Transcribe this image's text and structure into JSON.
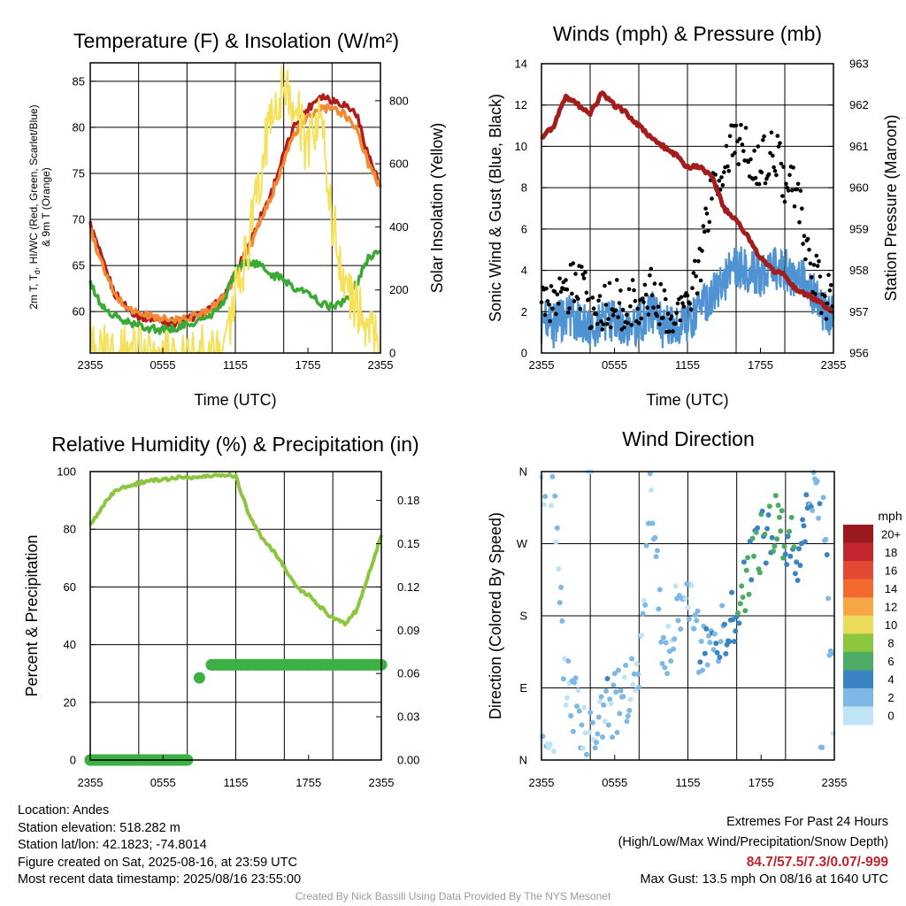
{
  "colors": {
    "red": "#b31b1b",
    "scarlet": "#e34a33",
    "orange": "#f08a33",
    "green": "#3aaa35",
    "yellow": "#f5e15a",
    "blue": "#4f93d2",
    "black": "#000000",
    "maroon": "#a31d1d",
    "rh_green": "#8cc63f",
    "precip_green": "#3cb043"
  },
  "chart_data": [
    {
      "type": "line",
      "title": "Temperature (F) & Insolation (W/m²)",
      "xlabel": "Time (UTC)",
      "ylabel": "2m T, T_d, HI/WC (Red, Green, Scarlet/Blue) & 9m T (Orange)",
      "ylabel_line1": "2m T, T",
      "ylabel_sub": "d",
      "ylabel_line1b": ", HI/WC (Red, Green, Scarlet/Blue)",
      "ylabel_line2": "& 9m T (Orange)",
      "y2label": "Solar Insolation (Yellow)",
      "xticks": [
        "2355",
        "0555",
        "1155",
        "1755",
        "2355"
      ],
      "yticks": [
        "60",
        "65",
        "70",
        "75",
        "80",
        "85"
      ],
      "y2ticks": [
        "0",
        "200",
        "400",
        "600",
        "800"
      ],
      "ylim": [
        55.5,
        87
      ],
      "y2lim": [
        0,
        920
      ],
      "grid": true,
      "x_hours_since_2355": [
        0,
        1,
        2,
        3,
        4,
        5,
        6,
        7,
        8,
        9,
        10,
        11,
        12,
        13,
        14,
        15,
        16,
        17,
        18,
        19,
        20,
        21,
        22,
        23,
        24
      ],
      "series": [
        {
          "name": "2m T",
          "color": "red",
          "values": [
            69.5,
            65.5,
            62,
            60.5,
            59.5,
            59.3,
            59,
            58.8,
            59.2,
            59.5,
            60.3,
            61.5,
            64,
            67,
            70,
            73,
            77,
            80.5,
            82,
            83.5,
            83,
            82.5,
            81.5,
            77,
            73.5
          ]
        },
        {
          "name": "9m T",
          "color": "orange",
          "values": [
            69,
            65,
            61.8,
            60.5,
            59.8,
            59.5,
            59.2,
            59,
            59.3,
            59.7,
            60.5,
            61.5,
            63.8,
            66.5,
            69.5,
            72.5,
            76.5,
            79.5,
            81,
            82,
            82,
            81.5,
            80,
            76,
            73.5
          ]
        },
        {
          "name": "T_d",
          "color": "green",
          "values": [
            63,
            60.5,
            59.5,
            58.8,
            58.5,
            58.2,
            58,
            58.2,
            58.5,
            59,
            59.5,
            61,
            64.5,
            65.5,
            65,
            64,
            63.5,
            62.5,
            62,
            61,
            60.5,
            61,
            63,
            66,
            66.5
          ]
        },
        {
          "name": "Solar Insolation",
          "color": "yellow",
          "axis": "right",
          "values": [
            0,
            0,
            0,
            0,
            0,
            0,
            0,
            0,
            0,
            0,
            0,
            20,
            180,
            320,
            560,
            750,
            860,
            780,
            620,
            780,
            430,
            220,
            150,
            80,
            0
          ]
        }
      ]
    },
    {
      "type": "line",
      "title": "Winds (mph) & Pressure (mb)",
      "xlabel": "Time (UTC)",
      "ylabel": "Sonic Wind & Gust (Blue, Black)",
      "y2label": "Station Pressure (Maroon)",
      "xticks": [
        "2355",
        "0555",
        "1155",
        "1755",
        "2355"
      ],
      "yticks": [
        "0",
        "2",
        "4",
        "6",
        "8",
        "10",
        "12",
        "14"
      ],
      "y2ticks": [
        "956",
        "957",
        "958",
        "959",
        "960",
        "961",
        "962",
        "963"
      ],
      "ylim": [
        0,
        14
      ],
      "y2lim": [
        956,
        963
      ],
      "grid": true,
      "x_hours_since_2355": [
        0,
        1,
        2,
        3,
        4,
        5,
        6,
        7,
        8,
        9,
        10,
        11,
        12,
        13,
        14,
        15,
        16,
        17,
        18,
        19,
        20,
        21,
        22,
        23,
        24
      ],
      "series": [
        {
          "name": "Sonic Wind",
          "color": "blue",
          "values": [
            1.5,
            1.3,
            1.8,
            1.5,
            1.2,
            1.4,
            1.6,
            1.3,
            1.5,
            2.0,
            1.3,
            1.5,
            1.5,
            2.3,
            2.8,
            3.5,
            4.2,
            4.0,
            3.8,
            4.2,
            4.0,
            3.7,
            3.2,
            2.2,
            1.6
          ]
        },
        {
          "name": "Gust",
          "color": "black",
          "values": [
            2.2,
            2.5,
            3.0,
            3.5,
            2.3,
            2.0,
            2.4,
            2.3,
            2.5,
            3.0,
            2.0,
            1.8,
            2.5,
            4.0,
            8.0,
            9.0,
            10.5,
            9.5,
            9.0,
            10.0,
            8.5,
            8.0,
            4.5,
            3.0,
            2.5
          ]
        },
        {
          "name": "Station Pressure",
          "color": "maroon",
          "axis": "right",
          "values": [
            961.2,
            961.5,
            962.2,
            962.0,
            961.8,
            962.3,
            962.0,
            961.8,
            961.5,
            961.2,
            961.0,
            960.8,
            960.5,
            960.5,
            960.3,
            959.5,
            959.2,
            958.8,
            958.3,
            958.0,
            957.9,
            957.5,
            957.4,
            957.2,
            957.0
          ]
        }
      ]
    },
    {
      "type": "line",
      "title": "Relative Humidity (%) & Precipitation (in)",
      "ylabel": "Percent & Precipitation",
      "xticks": [
        "2355",
        "0555",
        "1155",
        "1755",
        "2355"
      ],
      "yticks": [
        "0",
        "20",
        "40",
        "60",
        "80",
        "100"
      ],
      "y2ticks": [
        "0.00",
        "0.03",
        "0.06",
        "0.09",
        "0.12",
        "0.15",
        "0.18"
      ],
      "ylim": [
        0,
        100
      ],
      "y2lim": [
        0,
        0.2
      ],
      "grid": true,
      "x_hours_since_2355": [
        0,
        1,
        2,
        3,
        4,
        5,
        6,
        7,
        8,
        9,
        10,
        11,
        12,
        13,
        14,
        15,
        16,
        17,
        18,
        19,
        20,
        21,
        22,
        23,
        24
      ],
      "series": [
        {
          "name": "Relative Humidity",
          "color": "rh_green",
          "values": [
            81,
            88,
            93,
            95,
            96,
            97,
            97,
            98,
            98,
            98,
            98.5,
            99,
            98.5,
            86,
            78,
            73,
            67,
            60,
            57,
            53,
            49,
            47.5,
            52,
            65,
            78
          ]
        },
        {
          "name": "Precipitation",
          "color": "precip_green",
          "axis": "right",
          "values": [
            0,
            0,
            0,
            0,
            0,
            0,
            0,
            0,
            0,
            0.057,
            0.066,
            0.066,
            0.066,
            0.066,
            0.066,
            0.066,
            0.066,
            0.066,
            0.066,
            0.066,
            0.066,
            0.066,
            0.066,
            0.066,
            0.066
          ]
        }
      ]
    },
    {
      "type": "scatter",
      "title": "Wind Direction",
      "ylabel": "Direction (Colored By Speed)",
      "xticks": [
        "2355",
        "0555",
        "1155",
        "1755",
        "2355"
      ],
      "yticks": [
        "N",
        "E",
        "S",
        "W",
        "N"
      ],
      "ylim": [
        0,
        360
      ],
      "grid": true,
      "x_hours_since_2355": [
        0,
        1,
        2,
        3,
        4,
        5,
        6,
        7,
        8,
        9,
        10,
        11,
        12,
        13,
        14,
        15,
        16,
        17,
        18,
        19,
        20,
        21,
        22,
        23,
        24
      ],
      "direction_deg": [
        355,
        340,
        90,
        60,
        30,
        60,
        70,
        85,
        95,
        355,
        120,
        180,
        210,
        140,
        150,
        160,
        180,
        240,
        270,
        300,
        280,
        250,
        330,
        345,
        30
      ],
      "speed_mph": [
        1.5,
        1.2,
        1.6,
        1.4,
        1.2,
        1.8,
        1.6,
        1.3,
        1.5,
        2.0,
        1.4,
        1.6,
        1.5,
        2.5,
        3.5,
        4.5,
        5.5,
        5.0,
        4.5,
        6.0,
        4.5,
        3.8,
        3.0,
        2.0,
        1.5
      ],
      "colorbar": {
        "title": "mph",
        "labels": [
          "20+",
          "18",
          "16",
          "14",
          "12",
          "10",
          "8",
          "6",
          "4",
          "2",
          "0"
        ],
        "colors": [
          "#99191c",
          "#c1272d",
          "#e34a33",
          "#f26a2e",
          "#f6a646",
          "#eadc5a",
          "#8cc63f",
          "#4dac64",
          "#3b84c4",
          "#7db9e4",
          "#bfe4f6"
        ]
      }
    }
  ],
  "footer_left": [
    "Location: Andes",
    "Station elevation: 518.282 m",
    "Station lat/lon: 42.1823; -74.8014",
    "Figure created on Sat, 2025-08-16, at 23:59 UTC",
    "Most recent data timestamp: 2025/08/16 23:55:00"
  ],
  "extremes": {
    "line1": "Extremes For Past 24 Hours",
    "line2": "(High/Low/Max Wind/Precipitation/Snow Depth)",
    "values": "84.7/57.5/7.3/0.07/-999",
    "gust": "Max Gust: 13.5 mph On 08/16 at 1640 UTC"
  },
  "credit": "Created By Nick Bassill Using Data Provided By The NYS Mesonet"
}
